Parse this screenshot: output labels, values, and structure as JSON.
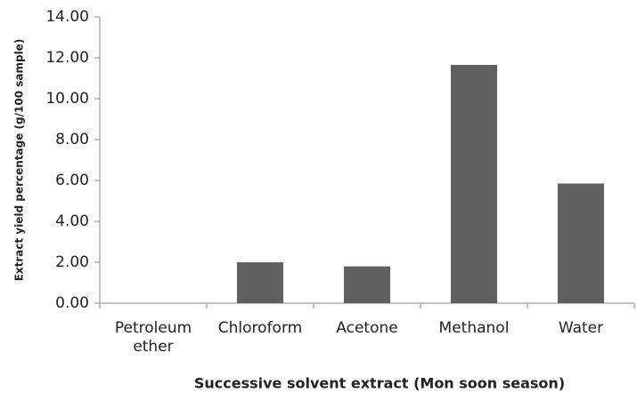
{
  "chart_data": {
    "type": "bar",
    "categories": [
      "Petroleum ether",
      "Chloroform",
      "Acetone",
      "Methanol",
      "Water"
    ],
    "values": [
      0,
      2.0,
      1.8,
      11.65,
      5.85
    ],
    "color": "#5f5f5f",
    "ylim": [
      0,
      14
    ],
    "yticks": [
      {
        "value": 0,
        "label": "0.00"
      },
      {
        "value": 2,
        "label": "2.00"
      },
      {
        "value": 4,
        "label": "4.00"
      },
      {
        "value": 6,
        "label": "6.00"
      },
      {
        "value": 8,
        "label": "8.00"
      },
      {
        "value": 10,
        "label": "10.00"
      },
      {
        "value": 12,
        "label": "12.00"
      },
      {
        "value": 14,
        "label": "14.00"
      }
    ],
    "y_label": "Extract yield percentage (g/100 sample)",
    "x_label": "Successive solvent extract (Mon soon season)"
  }
}
